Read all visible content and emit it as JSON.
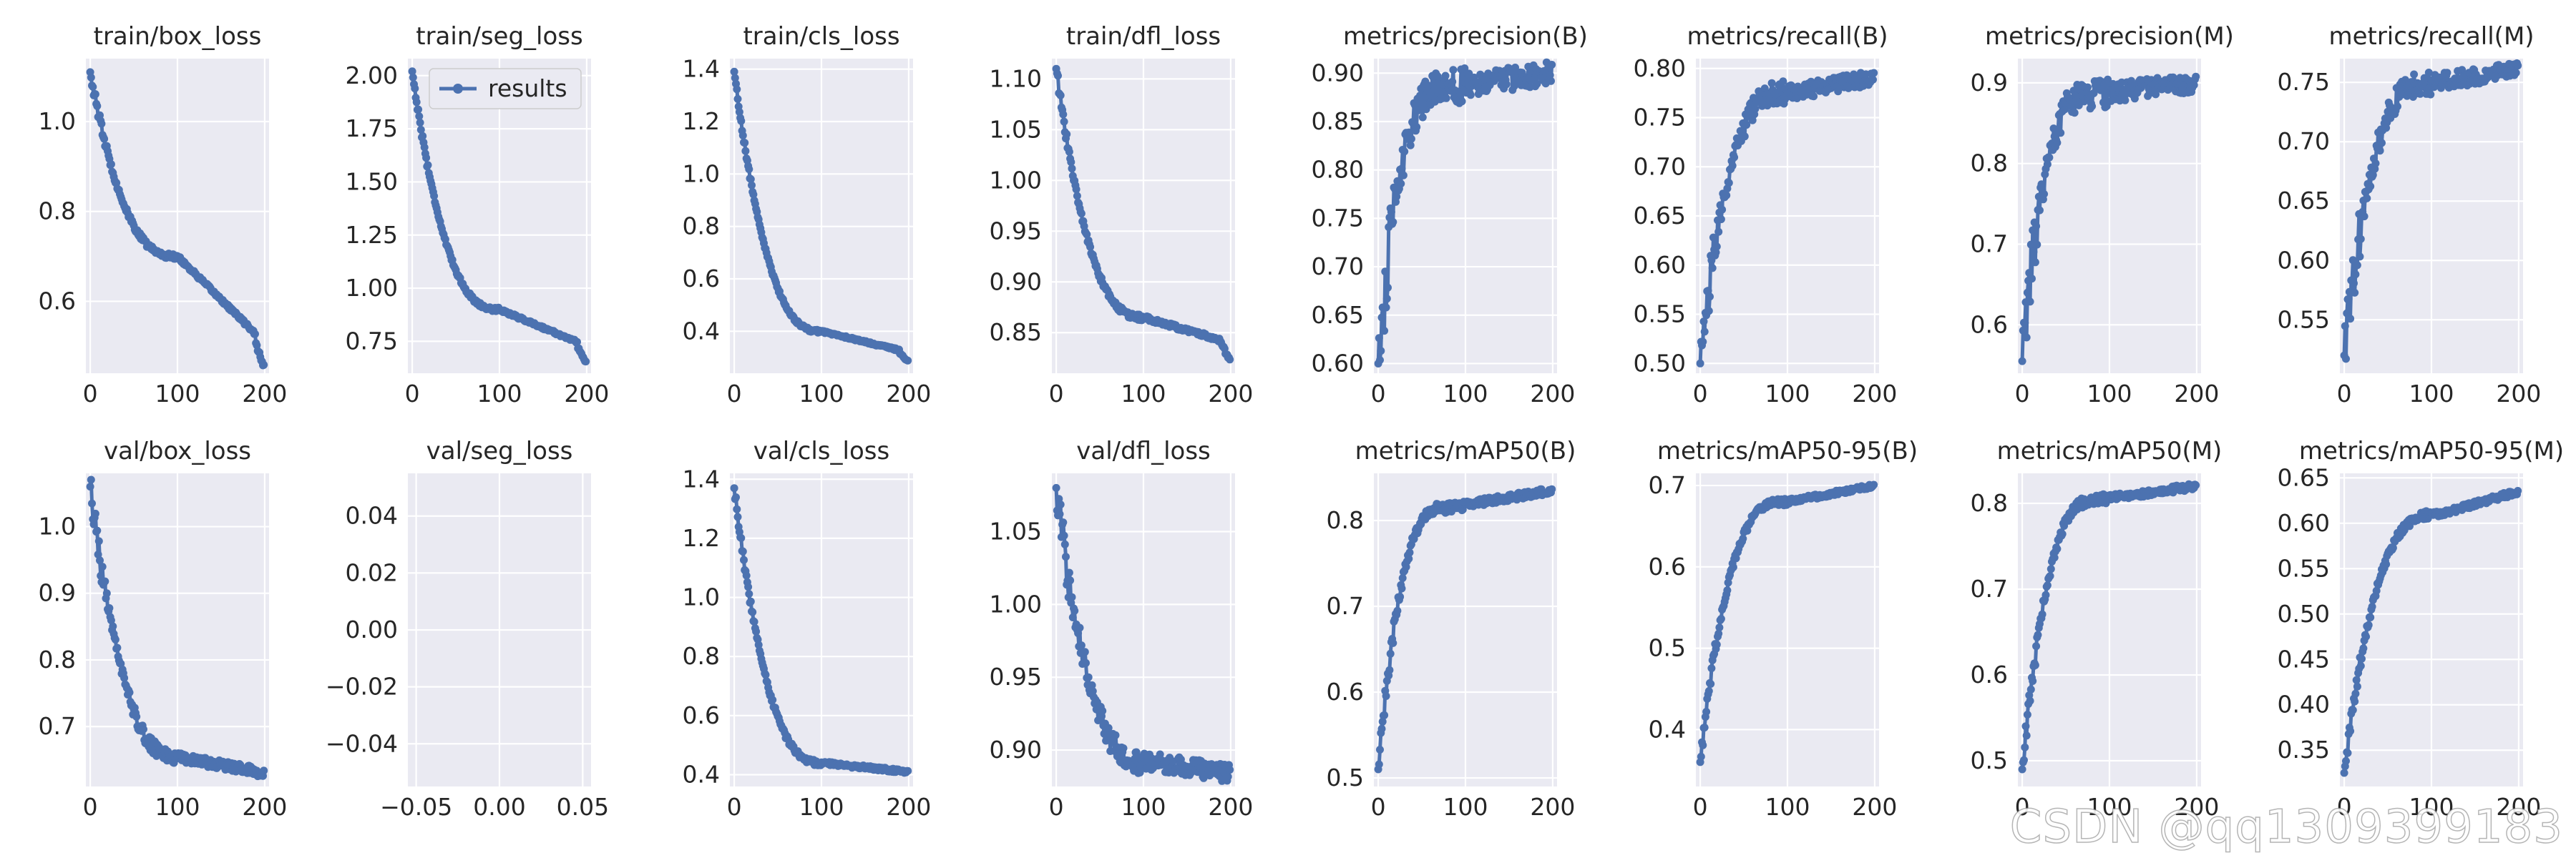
{
  "watermark": "CSDN @qq1309399183",
  "style": {
    "axes_bg": "#eaeaf2",
    "grid": "#ffffff",
    "line": "#4c72b0",
    "text": "#262626",
    "legend_border": "#cccccc"
  },
  "chart_data": [
    {
      "type": "line",
      "title": "train/box_loss",
      "xlim": [
        -5,
        205
      ],
      "ylim": [
        0.44,
        1.14
      ],
      "xticks": [
        0,
        100,
        200
      ],
      "xtick_labels": [
        "0",
        "100",
        "200"
      ],
      "yticks": [
        0.6,
        0.8,
        1.0
      ],
      "ytick_labels": [
        "0.6",
        "0.8",
        "1.0"
      ],
      "series": [
        {
          "name": "results",
          "kind": "loss",
          "start": 1.11,
          "plateau": 0.7,
          "ramp_end": 100,
          "end": 0.51,
          "final": 0.455,
          "noise": 0.004
        }
      ]
    },
    {
      "type": "line",
      "title": "train/seg_loss",
      "xlim": [
        -5,
        205
      ],
      "ylim": [
        0.6,
        2.08
      ],
      "xticks": [
        0,
        100,
        200
      ],
      "xtick_labels": [
        "0",
        "100",
        "200"
      ],
      "yticks": [
        0.75,
        1.0,
        1.25,
        1.5,
        1.75,
        2.0
      ],
      "ytick_labels": [
        "0.75",
        "1.00",
        "1.25",
        "1.50",
        "1.75",
        "2.00"
      ],
      "legend": {
        "position": "upper right",
        "entries": [
          "results"
        ]
      },
      "series": [
        {
          "name": "results",
          "kind": "loss",
          "start": 2.02,
          "plateau": 0.9,
          "ramp_end": 100,
          "end": 0.73,
          "final": 0.65,
          "noise": 0.006
        }
      ]
    },
    {
      "type": "line",
      "title": "train/cls_loss",
      "xlim": [
        -5,
        205
      ],
      "ylim": [
        0.24,
        1.44
      ],
      "xticks": [
        0,
        100,
        200
      ],
      "xtick_labels": [
        "0",
        "100",
        "200"
      ],
      "yticks": [
        0.4,
        0.6,
        0.8,
        1.0,
        1.2,
        1.4
      ],
      "ytick_labels": [
        "0.4",
        "0.6",
        "0.8",
        "1.0",
        "1.2",
        "1.4"
      ],
      "series": [
        {
          "name": "results",
          "kind": "loss",
          "start": 1.39,
          "plateau": 0.4,
          "ramp_end": 100,
          "end": 0.32,
          "final": 0.285,
          "noise": 0.004
        }
      ]
    },
    {
      "type": "line",
      "title": "train/dfl_loss",
      "xlim": [
        -5,
        205
      ],
      "ylim": [
        0.81,
        1.12
      ],
      "xticks": [
        0,
        100,
        200
      ],
      "xtick_labels": [
        "0",
        "100",
        "200"
      ],
      "yticks": [
        0.85,
        0.9,
        0.95,
        1.0,
        1.05,
        1.1
      ],
      "ytick_labels": [
        "0.85",
        "0.90",
        "0.95",
        "1.00",
        "1.05",
        "1.10"
      ],
      "series": [
        {
          "name": "results",
          "kind": "loss",
          "start": 1.11,
          "plateau": 0.865,
          "ramp_end": 100,
          "end": 0.84,
          "final": 0.822,
          "noise": 0.002
        }
      ]
    },
    {
      "type": "line",
      "title": "metrics/precision(B)",
      "xlim": [
        -5,
        205
      ],
      "ylim": [
        0.59,
        0.915
      ],
      "xticks": [
        0,
        100,
        200
      ],
      "xtick_labels": [
        "0",
        "100",
        "200"
      ],
      "yticks": [
        0.6,
        0.65,
        0.7,
        0.75,
        0.8,
        0.85,
        0.9
      ],
      "ytick_labels": [
        "0.60",
        "0.65",
        "0.70",
        "0.75",
        "0.80",
        "0.85",
        "0.90"
      ],
      "series": [
        {
          "name": "results",
          "kind": "metric",
          "start": 0.6,
          "plateau": 0.885,
          "ramp_end": 80,
          "end": 0.9,
          "noise": 0.012
        }
      ]
    },
    {
      "type": "line",
      "title": "metrics/recall(B)",
      "xlim": [
        -5,
        205
      ],
      "ylim": [
        0.49,
        0.81
      ],
      "xticks": [
        0,
        100,
        200
      ],
      "xtick_labels": [
        "0",
        "100",
        "200"
      ],
      "yticks": [
        0.5,
        0.55,
        0.6,
        0.65,
        0.7,
        0.75,
        0.8
      ],
      "ytick_labels": [
        "0.50",
        "0.55",
        "0.60",
        "0.65",
        "0.70",
        "0.75",
        "0.80"
      ],
      "series": [
        {
          "name": "results",
          "kind": "metric",
          "start": 0.5,
          "plateau": 0.775,
          "ramp_end": 100,
          "end": 0.79,
          "noise": 0.008
        }
      ]
    },
    {
      "type": "line",
      "title": "metrics/precision(M)",
      "xlim": [
        -5,
        205
      ],
      "ylim": [
        0.54,
        0.93
      ],
      "xticks": [
        0,
        100,
        200
      ],
      "xtick_labels": [
        "0",
        "100",
        "200"
      ],
      "yticks": [
        0.6,
        0.7,
        0.8,
        0.9
      ],
      "ytick_labels": [
        "0.6",
        "0.7",
        "0.8",
        "0.9"
      ],
      "series": [
        {
          "name": "results",
          "kind": "metric",
          "start": 0.555,
          "plateau": 0.885,
          "ramp_end": 80,
          "end": 0.9,
          "noise": 0.012
        }
      ]
    },
    {
      "type": "line",
      "title": "metrics/recall(M)",
      "xlim": [
        -5,
        205
      ],
      "ylim": [
        0.505,
        0.77
      ],
      "xticks": [
        0,
        100,
        200
      ],
      "xtick_labels": [
        "0",
        "100",
        "200"
      ],
      "yticks": [
        0.55,
        0.6,
        0.65,
        0.7,
        0.75
      ],
      "ytick_labels": [
        "0.55",
        "0.60",
        "0.65",
        "0.70",
        "0.75"
      ],
      "series": [
        {
          "name": "results",
          "kind": "metric",
          "start": 0.52,
          "plateau": 0.75,
          "ramp_end": 100,
          "end": 0.76,
          "noise": 0.007
        }
      ]
    },
    {
      "type": "line",
      "title": "val/box_loss",
      "xlim": [
        -5,
        205
      ],
      "ylim": [
        0.61,
        1.08
      ],
      "xticks": [
        0,
        100,
        200
      ],
      "xtick_labels": [
        "0",
        "100",
        "200"
      ],
      "yticks": [
        0.7,
        0.8,
        0.9,
        1.0
      ],
      "ytick_labels": [
        "0.7",
        "0.8",
        "0.9",
        "1.0"
      ],
      "series": [
        {
          "name": "results",
          "kind": "loss",
          "start": 1.06,
          "plateau": 0.655,
          "ramp_end": 100,
          "end": 0.63,
          "final": 0.63,
          "noise": 0.007
        }
      ]
    },
    {
      "type": "line",
      "title": "val/seg_loss",
      "xlim": [
        -0.055,
        0.055
      ],
      "ylim": [
        -0.055,
        0.055
      ],
      "xticks": [
        -0.05,
        0,
        0.05
      ],
      "xtick_labels": [
        "−0.05",
        "0.00",
        "0.05"
      ],
      "yticks": [
        -0.04,
        -0.02,
        0,
        0.02,
        0.04
      ],
      "ytick_labels": [
        "−0.04",
        "−0.02",
        "0.00",
        "0.02",
        "0.04"
      ],
      "series": []
    },
    {
      "type": "line",
      "title": "val/cls_loss",
      "xlim": [
        -5,
        205
      ],
      "ylim": [
        0.36,
        1.42
      ],
      "xticks": [
        0,
        100,
        200
      ],
      "xtick_labels": [
        "0",
        "100",
        "200"
      ],
      "yticks": [
        0.4,
        0.6,
        0.8,
        1.0,
        1.2,
        1.4
      ],
      "ytick_labels": [
        "0.4",
        "0.6",
        "0.8",
        "1.0",
        "1.2",
        "1.4"
      ],
      "series": [
        {
          "name": "results",
          "kind": "loss",
          "start": 1.37,
          "plateau": 0.44,
          "ramp_end": 100,
          "end": 0.41,
          "final": 0.41,
          "noise": 0.006
        }
      ]
    },
    {
      "type": "line",
      "title": "val/dfl_loss",
      "xlim": [
        -5,
        205
      ],
      "ylim": [
        0.875,
        1.09
      ],
      "xticks": [
        0,
        100,
        200
      ],
      "xtick_labels": [
        "0",
        "100",
        "200"
      ],
      "yticks": [
        0.9,
        0.95,
        1.0,
        1.05
      ],
      "ytick_labels": [
        "0.90",
        "0.95",
        "1.00",
        "1.05"
      ],
      "series": [
        {
          "name": "results",
          "kind": "loss",
          "start": 1.08,
          "plateau": 0.893,
          "ramp_end": 100,
          "end": 0.884,
          "final": 0.884,
          "noise": 0.006
        }
      ]
    },
    {
      "type": "line",
      "title": "metrics/mAP50(B)",
      "xlim": [
        -5,
        205
      ],
      "ylim": [
        0.49,
        0.855
      ],
      "xticks": [
        0,
        100,
        200
      ],
      "xtick_labels": [
        "0",
        "100",
        "200"
      ],
      "yticks": [
        0.5,
        0.6,
        0.7,
        0.8
      ],
      "ytick_labels": [
        "0.5",
        "0.6",
        "0.7",
        "0.8"
      ],
      "series": [
        {
          "name": "results",
          "kind": "metric",
          "start": 0.51,
          "plateau": 0.815,
          "ramp_end": 80,
          "end": 0.835,
          "noise": 0.004
        }
      ]
    },
    {
      "type": "line",
      "title": "metrics/mAP50-95(B)",
      "xlim": [
        -5,
        205
      ],
      "ylim": [
        0.33,
        0.715
      ],
      "xticks": [
        0,
        100,
        200
      ],
      "xtick_labels": [
        "0",
        "100",
        "200"
      ],
      "yticks": [
        0.4,
        0.5,
        0.6,
        0.7
      ],
      "ytick_labels": [
        "0.4",
        "0.5",
        "0.6",
        "0.7"
      ],
      "series": [
        {
          "name": "results",
          "kind": "metric",
          "start": 0.36,
          "plateau": 0.68,
          "ramp_end": 100,
          "end": 0.7,
          "noise": 0.003
        }
      ]
    },
    {
      "type": "line",
      "title": "metrics/mAP50(M)",
      "xlim": [
        -5,
        205
      ],
      "ylim": [
        0.47,
        0.835
      ],
      "xticks": [
        0,
        100,
        200
      ],
      "xtick_labels": [
        "0",
        "100",
        "200"
      ],
      "yticks": [
        0.5,
        0.6,
        0.7,
        0.8
      ],
      "ytick_labels": [
        "0.5",
        "0.6",
        "0.7",
        "0.8"
      ],
      "series": [
        {
          "name": "results",
          "kind": "metric",
          "start": 0.49,
          "plateau": 0.805,
          "ramp_end": 90,
          "end": 0.82,
          "noise": 0.004
        }
      ]
    },
    {
      "type": "line",
      "title": "metrics/mAP50-95(M)",
      "xlim": [
        -5,
        205
      ],
      "ylim": [
        0.31,
        0.655
      ],
      "xticks": [
        0,
        100,
        200
      ],
      "xtick_labels": [
        "0",
        "100",
        "200"
      ],
      "yticks": [
        0.35,
        0.4,
        0.45,
        0.5,
        0.55,
        0.6,
        0.65
      ],
      "ytick_labels": [
        "0.35",
        "0.40",
        "0.45",
        "0.50",
        "0.55",
        "0.60",
        "0.65"
      ],
      "series": [
        {
          "name": "results",
          "kind": "metric",
          "start": 0.325,
          "plateau": 0.61,
          "ramp_end": 110,
          "end": 0.635,
          "noise": 0.003
        }
      ]
    }
  ]
}
